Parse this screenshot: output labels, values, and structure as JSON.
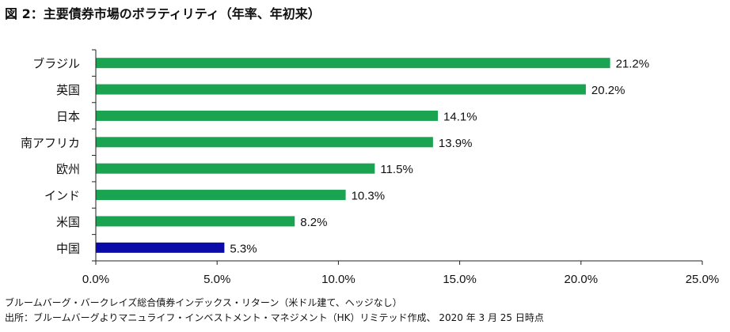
{
  "title": "図 2：主要債券市場のボラティリティ（年率、年初来）",
  "notes": [
    "ブルームバーグ・バークレイズ総合債券インデックス・リターン（米ドル建て、ヘッジなし）",
    "出所：ブルームバーグよりマニュライフ・インベストメント・マネジメント（HK）リミテッド作成、 2020 年 3 月 25 日時点"
  ],
  "chart_data": {
    "type": "bar",
    "orientation": "horizontal",
    "title": "図 2：主要債券市場のボラティリティ（年率、年初来）",
    "xlabel": "",
    "ylabel": "",
    "xlim": [
      0,
      25
    ],
    "x_ticks": [
      "0.0%",
      "5.0%",
      "10.0%",
      "15.0%",
      "20.0%",
      "25.0%"
    ],
    "categories": [
      "ブラジル",
      "英国",
      "日本",
      "南アフリカ",
      "欧州",
      "インド",
      "米国",
      "中国"
    ],
    "values": [
      21.2,
      20.2,
      14.1,
      13.9,
      11.5,
      10.3,
      8.2,
      5.3
    ],
    "value_labels": [
      "21.2%",
      "20.2%",
      "14.1%",
      "13.9%",
      "11.5%",
      "10.3%",
      "8.2%",
      "5.3%"
    ],
    "bar_colors": [
      "#1aa350",
      "#1aa350",
      "#1aa350",
      "#1aa350",
      "#1aa350",
      "#1aa350",
      "#1aa350",
      "#0a0aa8"
    ],
    "grid": false,
    "legend": "none"
  }
}
